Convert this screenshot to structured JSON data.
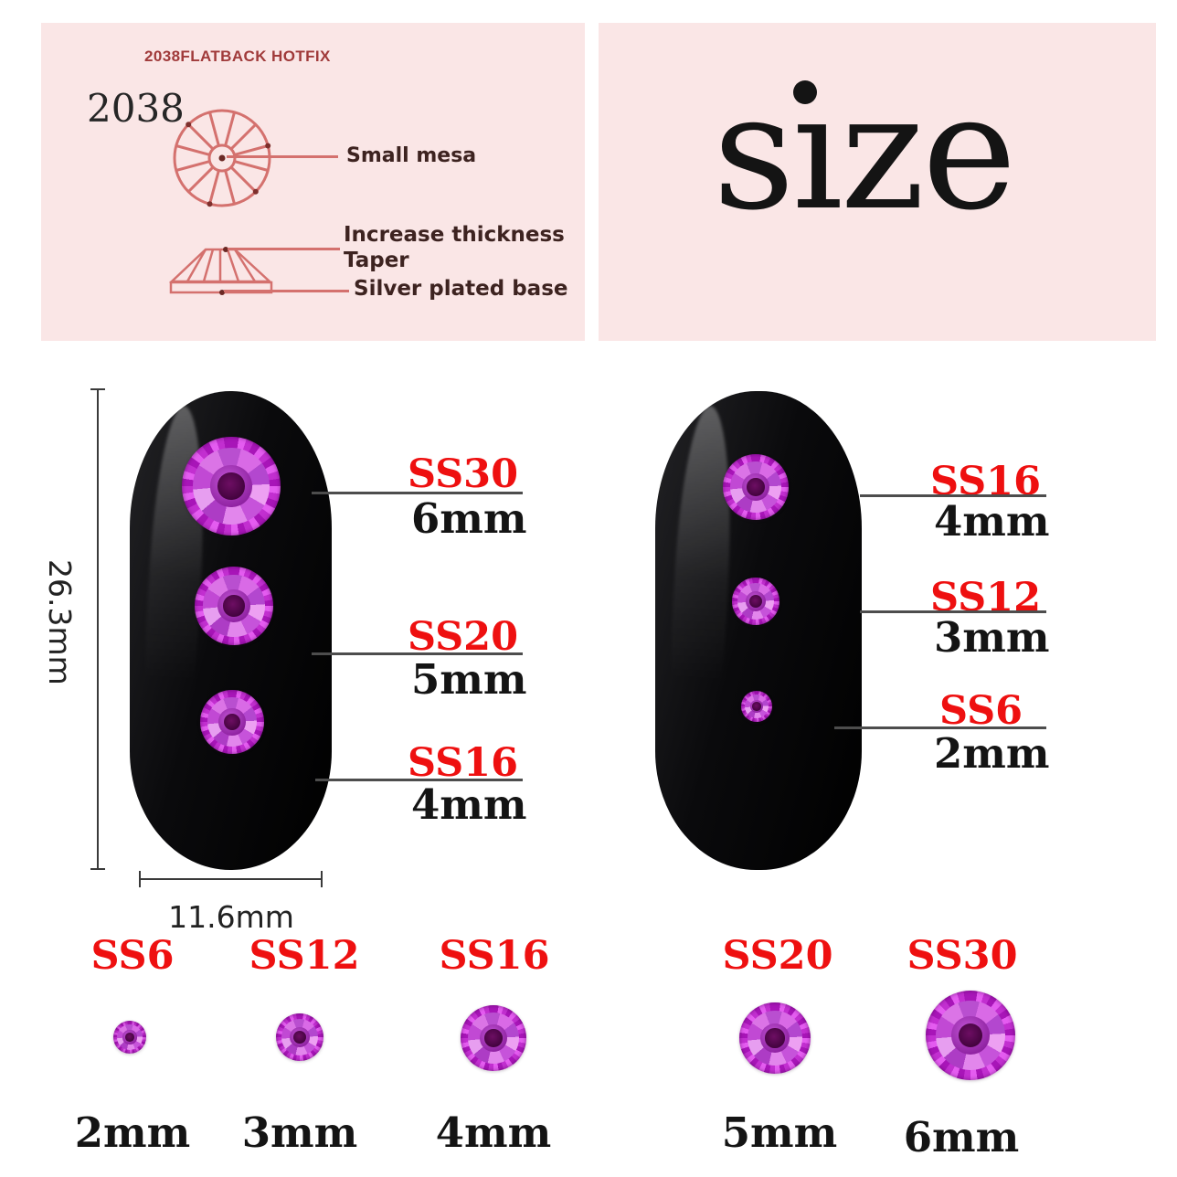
{
  "construction_panel": {
    "title": "2038FLATBACK HOTFIX",
    "model": "2038",
    "labels": {
      "small_mesa": "Small mesa",
      "increase_thickness": "Increase thickness",
      "taper": "Taper",
      "silver_plated_base": "Silver plated base"
    }
  },
  "size_panel": {
    "title": "size",
    "title_display": "sıze"
  },
  "left_nail": {
    "height_label": "26.3mm",
    "width_label": "11.6mm",
    "stones": [
      {
        "code": "SS30",
        "size": "6mm"
      },
      {
        "code": "SS20",
        "size": "5mm"
      },
      {
        "code": "SS16",
        "size": "4mm"
      }
    ]
  },
  "right_nail": {
    "stones": [
      {
        "code": "SS16",
        "size": "4mm"
      },
      {
        "code": "SS12",
        "size": "3mm"
      },
      {
        "code": "SS6",
        "size": "2mm"
      }
    ]
  },
  "size_chart": {
    "items": [
      {
        "code": "SS6",
        "size": "2mm"
      },
      {
        "code": "SS12",
        "size": "3mm"
      },
      {
        "code": "SS16",
        "size": "4mm"
      },
      {
        "code": "SS20",
        "size": "5mm"
      },
      {
        "code": "SS30",
        "size": "6mm"
      }
    ]
  },
  "colors": {
    "panel_pink": "#fae6e6",
    "accent_red": "#ee1010",
    "diagram_salmon": "#d4716e",
    "label_brown": "#3d2320",
    "title_maroon": "#a03a3a",
    "gem_magenta": "#c22fd0",
    "ink": "#141414"
  }
}
